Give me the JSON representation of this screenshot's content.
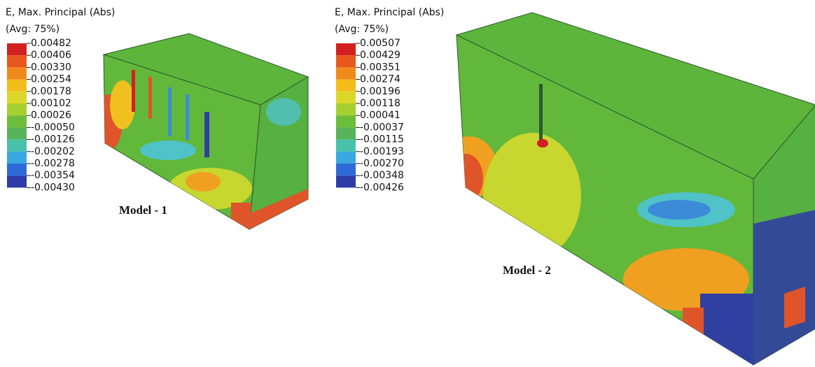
{
  "legends": [
    {
      "title": "E, Max. Principal (Abs)",
      "subtitle": "(Avg: 75%)",
      "labels": [
        "0.00482",
        "0.00406",
        "0.00330",
        "0.00254",
        "0.00178",
        "0.00102",
        "0.00026",
        "-0.00050",
        "-0.00126",
        "-0.00202",
        "-0.00278",
        "-0.00354",
        "-0.00430"
      ]
    },
    {
      "title": "E, Max. Principal (Abs)",
      "subtitle": "(Avg: 75%)",
      "labels": [
        "0.00507",
        "0.00429",
        "0.00351",
        "0.00274",
        "0.00196",
        "0.00118",
        "0.00041",
        "-0.00037",
        "-0.00115",
        "-0.00193",
        "-0.00270",
        "-0.00348",
        "-0.00426"
      ]
    }
  ],
  "models": [
    {
      "label": "Model - 1"
    },
    {
      "label": "Model - 2"
    }
  ]
}
